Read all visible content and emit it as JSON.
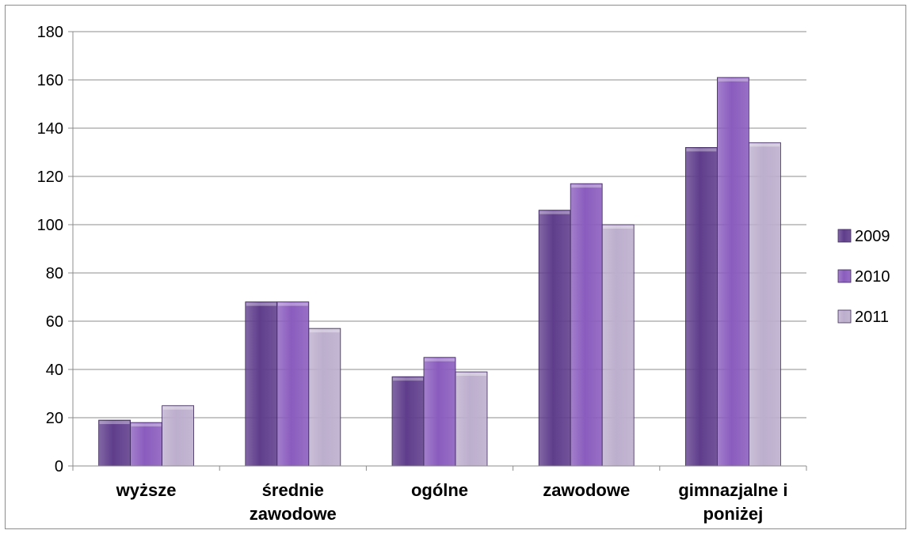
{
  "chart_data": {
    "type": "bar",
    "title": "",
    "xlabel": "",
    "ylabel": "",
    "categories": [
      [
        "wyższe"
      ],
      [
        "średnie",
        "zawodowe"
      ],
      [
        "ogólne"
      ],
      [
        "zawodowe"
      ],
      [
        "gimnazjalne i",
        "poniżej"
      ]
    ],
    "series": [
      {
        "name": "2009",
        "values": [
          19,
          68,
          37,
          106,
          132
        ],
        "color": "#5f3d8c"
      },
      {
        "name": "2010",
        "values": [
          18,
          68,
          45,
          117,
          161
        ],
        "color": "#8a5cbe"
      },
      {
        "name": "2011",
        "values": [
          25,
          57,
          39,
          100,
          134
        ],
        "color": "#bcaecd"
      }
    ],
    "ylim": [
      0,
      180
    ],
    "yticks": [
      0,
      20,
      40,
      60,
      80,
      100,
      120,
      140,
      160,
      180
    ],
    "grid": true,
    "legend_position": "right"
  }
}
